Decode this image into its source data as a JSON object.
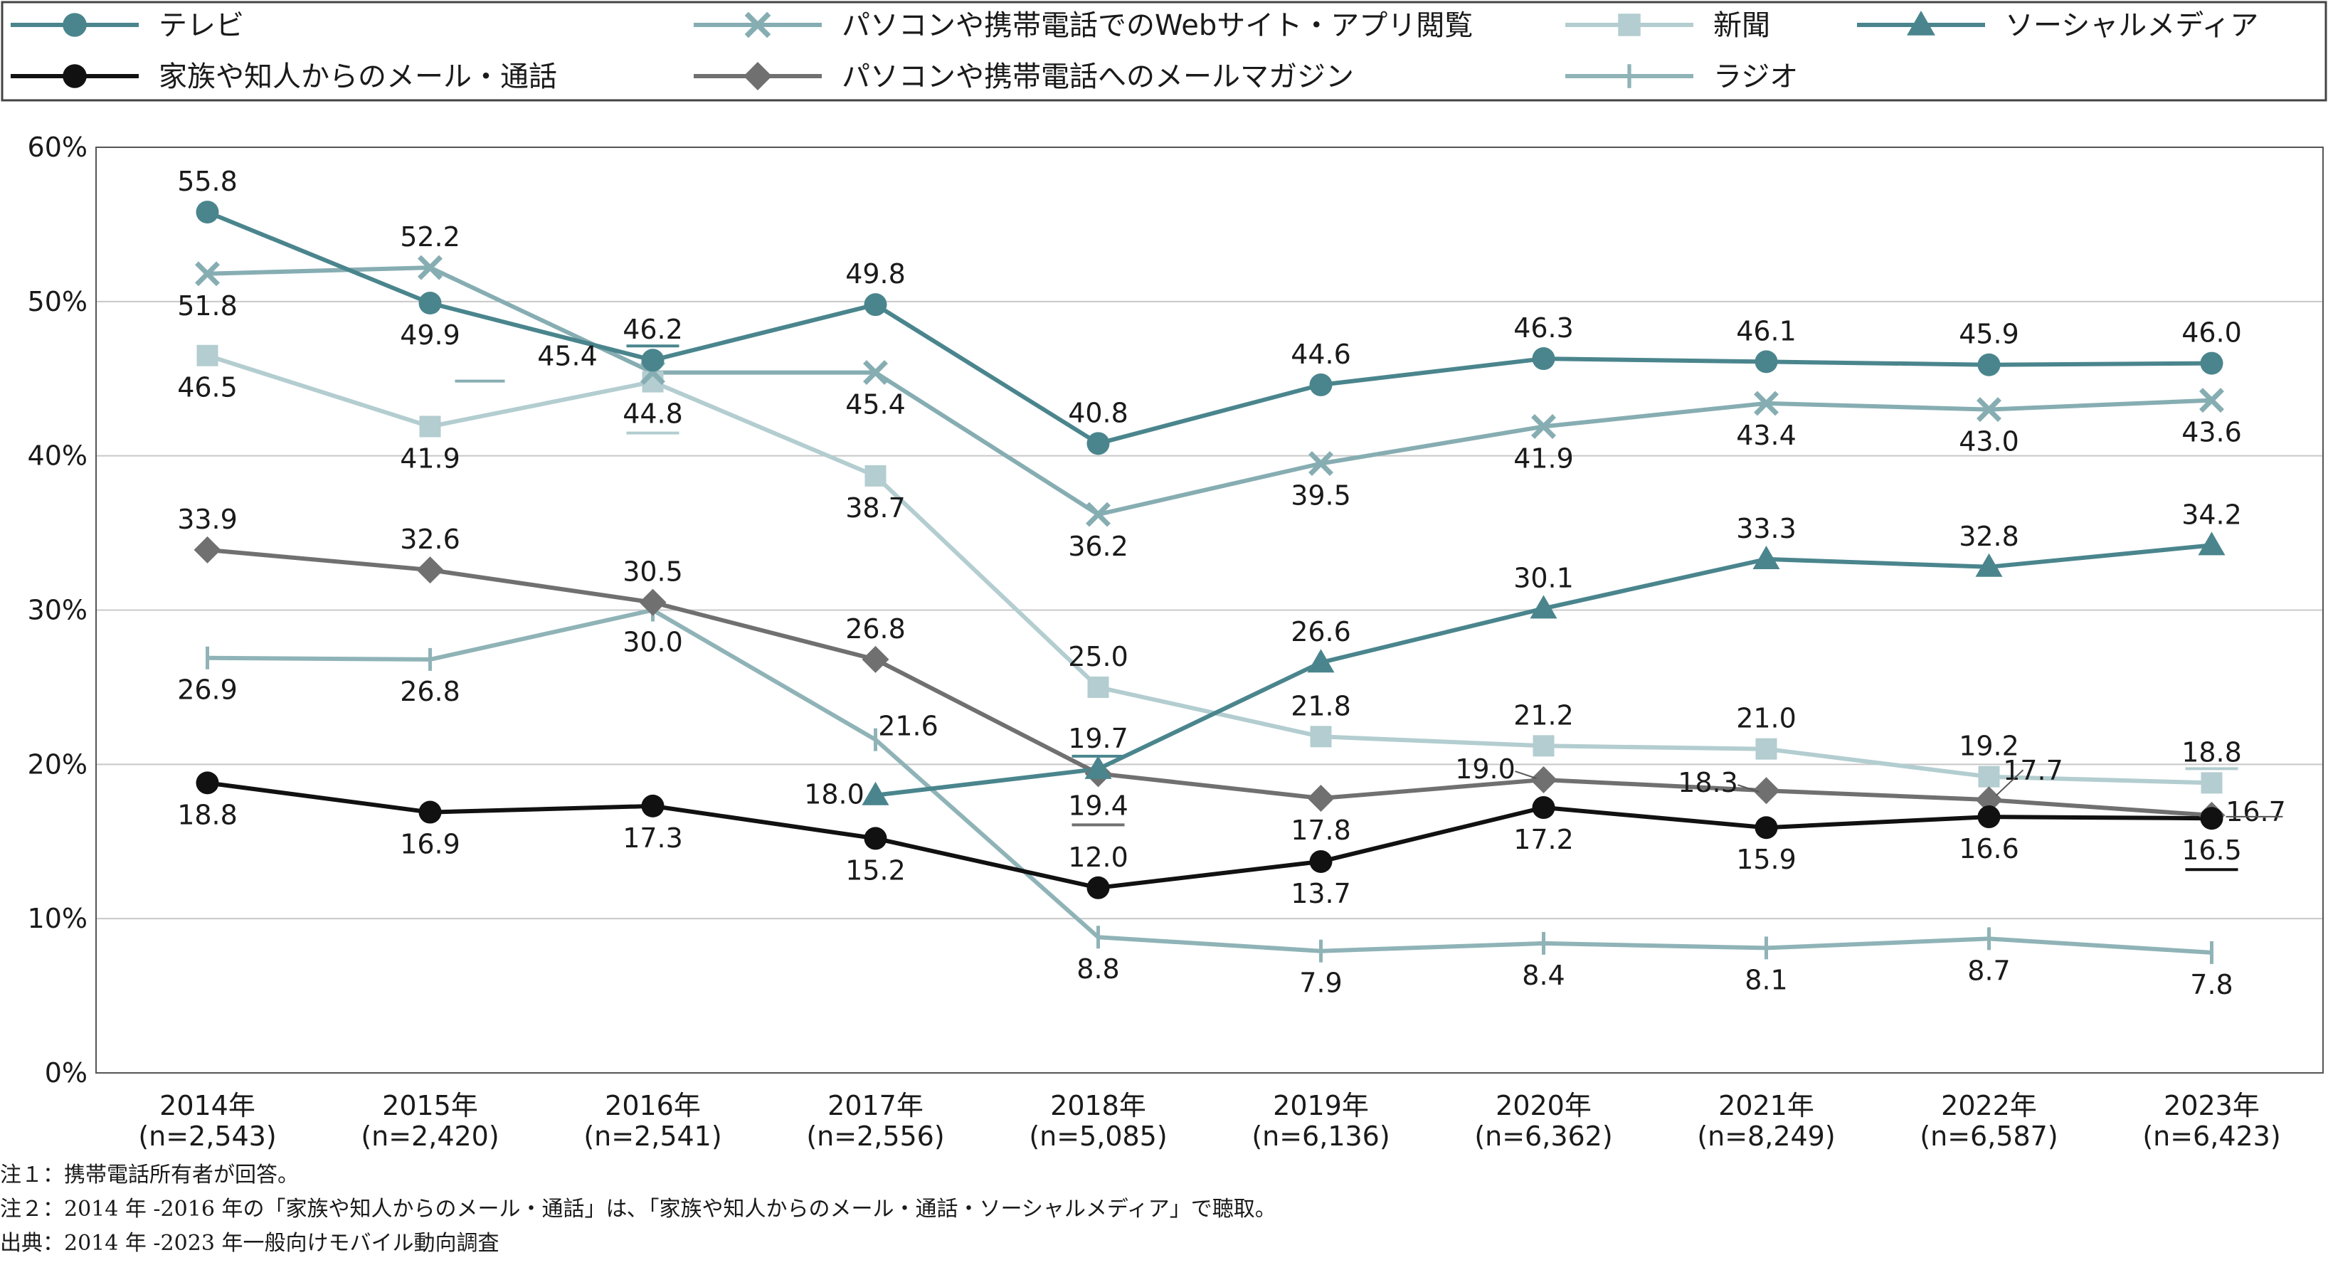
{
  "chart_data": {
    "type": "line",
    "title": "",
    "xlabel": "",
    "ylabel": "",
    "ylim": [
      0,
      60
    ],
    "y_ticks": [
      "0%",
      "10%",
      "20%",
      "30%",
      "40%",
      "50%",
      "60%"
    ],
    "grid": "horizontal",
    "legend_position": "top",
    "categories": [
      "2014年",
      "2015年",
      "2016年",
      "2017年",
      "2018年",
      "2019年",
      "2020年",
      "2021年",
      "2022年",
      "2023年"
    ],
    "category_counts": [
      "(n=2,543)",
      "(n=2,420)",
      "(n=2,541)",
      "(n=2,556)",
      "(n=5,085)",
      "(n=6,136)",
      "(n=6,362)",
      "(n=8,249)",
      "(n=6,587)",
      "(n=6,423)"
    ],
    "series": [
      {
        "name": "テレビ",
        "color": "#4a858d",
        "marker": "circle",
        "values": [
          55.8,
          49.9,
          46.2,
          49.8,
          40.8,
          44.6,
          46.3,
          46.1,
          45.9,
          46.0
        ]
      },
      {
        "name": "パソコンや携帯電話でのWebサイト・アプリ閲覧",
        "color": "#86adb2",
        "marker": "x",
        "values": [
          51.8,
          52.2,
          45.4,
          45.4,
          36.2,
          39.5,
          41.9,
          43.4,
          43.0,
          43.6
        ]
      },
      {
        "name": "新聞",
        "color": "#b3cdd0",
        "marker": "square",
        "values": [
          46.5,
          41.9,
          44.8,
          38.7,
          25.0,
          21.8,
          21.2,
          21.0,
          19.2,
          18.8
        ]
      },
      {
        "name": "ソーシャルメディア",
        "color": "#4a858d",
        "marker": "triangle",
        "values": [
          null,
          null,
          null,
          18.0,
          19.7,
          26.6,
          30.1,
          33.3,
          32.8,
          34.2
        ]
      },
      {
        "name": "家族や知人からのメール・通話",
        "color": "#111111",
        "marker": "circle",
        "values": [
          18.8,
          16.9,
          17.3,
          15.2,
          12.0,
          13.7,
          17.2,
          15.9,
          16.6,
          16.5
        ]
      },
      {
        "name": "パソコンや携帯電話へのメールマガジン",
        "color": "#707070",
        "marker": "diamond",
        "values": [
          33.9,
          32.6,
          30.5,
          26.8,
          19.4,
          17.8,
          19.0,
          18.3,
          17.7,
          16.7
        ]
      },
      {
        "name": "ラジオ",
        "color": "#8fb3b7",
        "marker": "tick",
        "values": [
          26.9,
          26.8,
          30.0,
          21.6,
          8.8,
          7.9,
          8.4,
          8.1,
          8.7,
          7.8
        ]
      }
    ]
  },
  "notes": [
    "注１：携帯電話所有者が回答。",
    "注２：2014 年 -2016 年の「家族や知人からのメール・通話」は､「家族や知人からのメール・通話・ソーシャルメディア」で聴取。",
    "出典：2014 年 -2023 年一般向けモバイル動向調査"
  ]
}
